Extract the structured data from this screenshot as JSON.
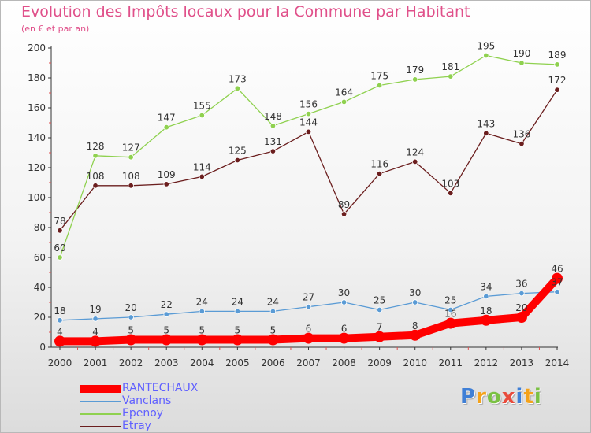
{
  "title": "Evolution des Impôts locaux pour la Commune par Habitant",
  "subtitle": "(en € et par an)",
  "logo_text": "Proxiti",
  "chart_data": {
    "type": "line",
    "x": [
      "2000",
      "2001",
      "2002",
      "2003",
      "2004",
      "2005",
      "2006",
      "2007",
      "2008",
      "2009",
      "2010",
      "2011",
      "2012",
      "2013",
      "2014"
    ],
    "y_ticks": [
      "0",
      "20",
      "40",
      "60",
      "80",
      "100",
      "120",
      "140",
      "160",
      "180",
      "200"
    ],
    "ylim": [
      0,
      200
    ],
    "grid": false,
    "legend_position": "bottom-left",
    "series": [
      {
        "name": "RANTECHAUX",
        "color": "#ff0000",
        "values": [
          4,
          4,
          5,
          5,
          5,
          5,
          5,
          6,
          6,
          7,
          8,
          16,
          18,
          20,
          46
        ],
        "labels": [
          "4",
          "4",
          "5",
          "5",
          "5",
          "5",
          "5",
          "6",
          "6",
          "7",
          "8",
          "16",
          "18",
          "20",
          "46"
        ]
      },
      {
        "name": "Vanclans",
        "color": "#5a9bd5",
        "values": [
          18,
          19,
          20,
          22,
          24,
          24,
          24,
          27,
          30,
          25,
          30,
          25,
          34,
          36,
          37
        ],
        "labels": [
          "18",
          "19",
          "20",
          "22",
          "24",
          "24",
          "24",
          "27",
          "30",
          "25",
          "30",
          "25",
          "34",
          "36",
          "37"
        ]
      },
      {
        "name": "Epenoy",
        "color": "#8fd14f",
        "values": [
          60,
          128,
          127,
          147,
          155,
          173,
          148,
          156,
          164,
          175,
          179,
          181,
          195,
          190,
          189
        ],
        "labels": [
          "60",
          "128",
          "127",
          "147",
          "155",
          "173",
          "148",
          "156",
          "164",
          "175",
          "179",
          "181",
          "195",
          "190",
          "189"
        ]
      },
      {
        "name": "Etray",
        "color": "#6b1e1e",
        "values": [
          78,
          108,
          108,
          109,
          114,
          125,
          131,
          144,
          89,
          116,
          124,
          103,
          143,
          136,
          172
        ],
        "labels": [
          "78",
          "108",
          "108",
          "109",
          "114",
          "125",
          "131",
          "144",
          "89",
          "116",
          "124",
          "103",
          "143",
          "136",
          "172"
        ]
      }
    ]
  }
}
